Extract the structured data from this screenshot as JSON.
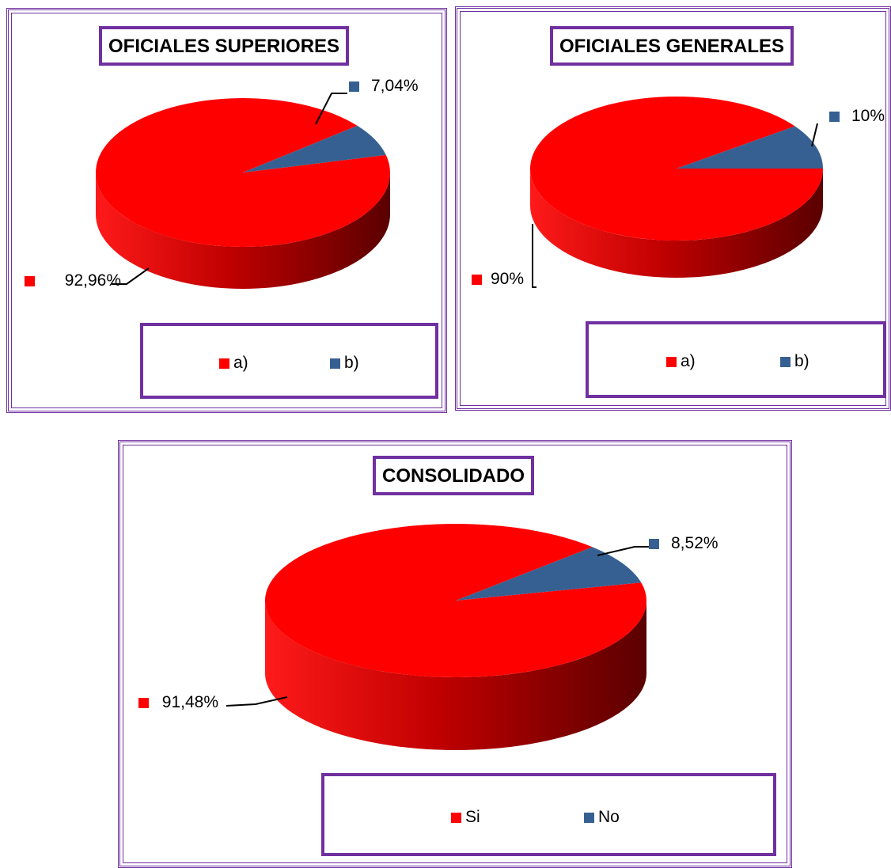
{
  "colors": {
    "red": "#ff0000",
    "blue": "#376092",
    "purple": "#7030a0"
  },
  "chart_data": [
    {
      "type": "pie",
      "title": "OFICIALES SUPERIORES",
      "slices": [
        {
          "category": "a)",
          "value": 92.96,
          "label": "92,96%",
          "color": "#ff0000"
        },
        {
          "category": "b)",
          "value": 7.04,
          "label": "7,04%",
          "color": "#376092"
        }
      ],
      "legend": [
        "a)",
        "b)"
      ],
      "legend_position": "bottom"
    },
    {
      "type": "pie",
      "title": "OFICIALES GENERALES",
      "slices": [
        {
          "category": "a)",
          "value": 90,
          "label": "90%",
          "color": "#ff0000"
        },
        {
          "category": "b)",
          "value": 10,
          "label": "10%",
          "color": "#376092"
        }
      ],
      "legend": [
        "a)",
        "b)"
      ],
      "legend_position": "bottom"
    },
    {
      "type": "pie",
      "title": "CONSOLIDADO",
      "slices": [
        {
          "category": "Si",
          "value": 91.48,
          "label": "91,48%",
          "color": "#ff0000"
        },
        {
          "category": "No",
          "value": 8.52,
          "label": "8,52%",
          "color": "#376092"
        }
      ],
      "legend": [
        "Si",
        "No"
      ],
      "legend_position": "bottom"
    }
  ]
}
